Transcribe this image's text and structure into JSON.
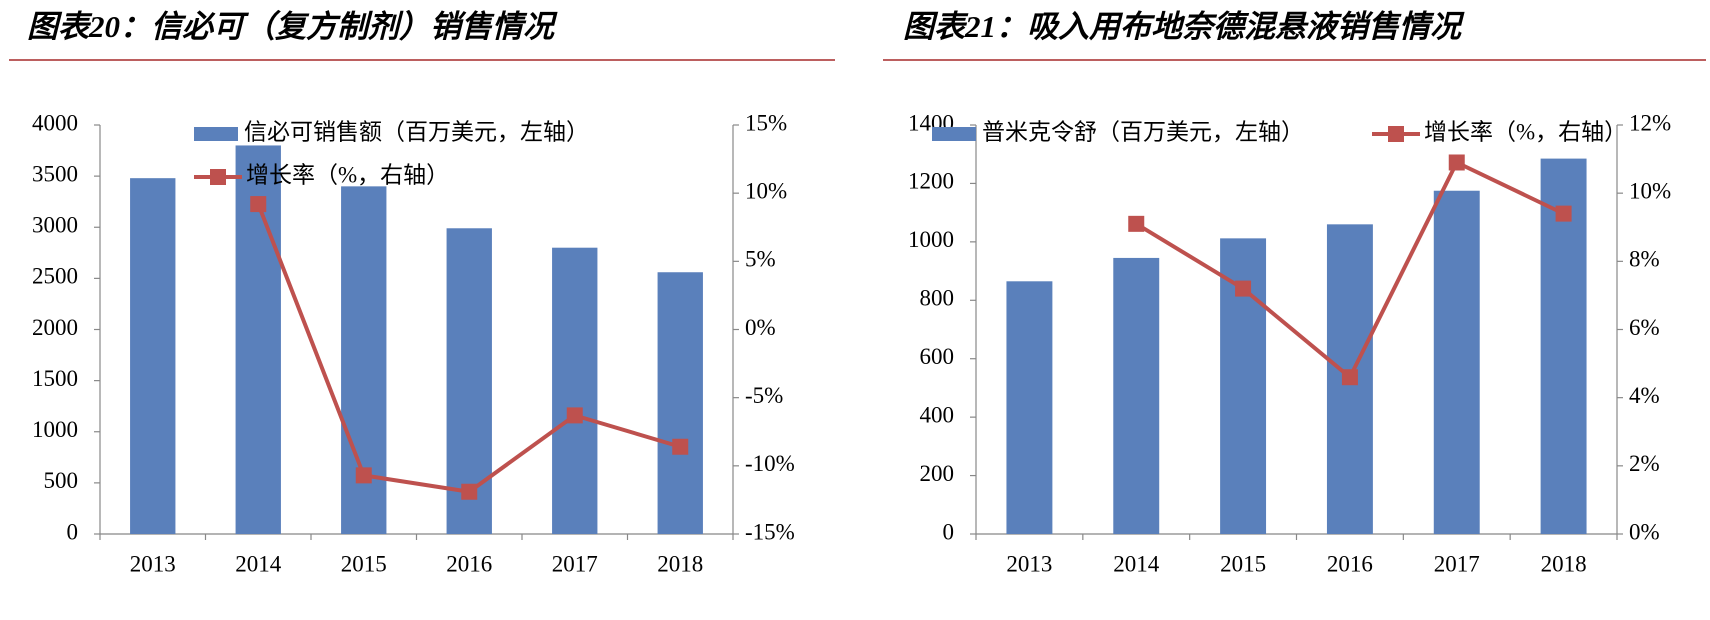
{
  "chart_data": [
    {
      "type": "combo",
      "title": "图表20：信必可（复方制剂）销售情况",
      "categories": [
        "2013",
        "2014",
        "2015",
        "2016",
        "2017",
        "2018"
      ],
      "series": [
        {
          "name": "信必可销售额（百万美元，左轴）",
          "type": "bar",
          "axis": "y",
          "color": "#5a80bb",
          "values": [
            3480,
            3800,
            3400,
            2990,
            2800,
            2560
          ]
        },
        {
          "name": "增长率（%，右轴）",
          "type": "line",
          "axis": "y2",
          "color": "#be514e",
          "values": [
            null,
            9.2,
            -10.7,
            -11.9,
            -6.3,
            -8.6
          ]
        }
      ],
      "ylim": [
        0,
        4000
      ],
      "yticks": [
        0,
        500,
        1000,
        1500,
        2000,
        2500,
        3000,
        3500,
        4000
      ],
      "y2lim": [
        -15,
        15
      ],
      "y2ticks": [
        {
          "value": -15,
          "label": "-15%"
        },
        {
          "value": -10,
          "label": "-10%"
        },
        {
          "value": -5,
          "label": "-5%"
        },
        {
          "value": 0,
          "label": "0%"
        },
        {
          "value": 5,
          "label": "5%"
        },
        {
          "value": 10,
          "label": "10%"
        },
        {
          "value": 15,
          "label": "15%"
        }
      ],
      "grid": false
    },
    {
      "type": "combo",
      "title": "图表21：吸入用布地奈德混悬液销售情况",
      "categories": [
        "2013",
        "2014",
        "2015",
        "2016",
        "2017",
        "2018"
      ],
      "series": [
        {
          "name": "普米克令舒（百万美元，左轴）",
          "type": "bar",
          "axis": "y",
          "color": "#5a80bb",
          "values": [
            865,
            945,
            1012,
            1060,
            1175,
            1285
          ]
        },
        {
          "name": "增长率（%，右轴）",
          "type": "line",
          "axis": "y2",
          "color": "#be514e",
          "values": [
            null,
            9.1,
            7.2,
            4.6,
            10.9,
            9.4
          ]
        }
      ],
      "ylim": [
        0,
        1400
      ],
      "yticks": [
        0,
        200,
        400,
        600,
        800,
        1000,
        1200,
        1400
      ],
      "y2lim": [
        0,
        12
      ],
      "y2ticks": [
        {
          "value": 0,
          "label": "0%"
        },
        {
          "value": 2,
          "label": "2%"
        },
        {
          "value": 4,
          "label": "4%"
        },
        {
          "value": 6,
          "label": "6%"
        },
        {
          "value": 8,
          "label": "8%"
        },
        {
          "value": 10,
          "label": "10%"
        },
        {
          "value": 12,
          "label": "12%"
        }
      ],
      "grid": false
    }
  ]
}
